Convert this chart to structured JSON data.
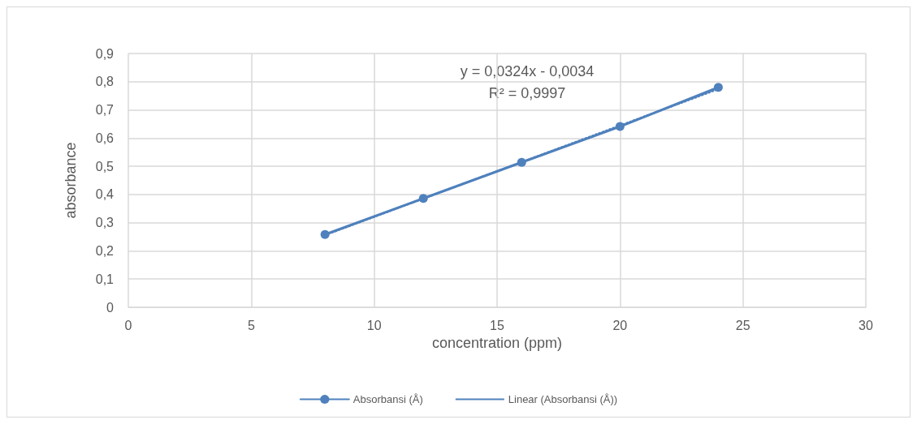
{
  "chart_data": {
    "type": "line",
    "xlabel": "concentration (ppm)",
    "ylabel": "absorbance",
    "annotations": [
      "y = 0,0324x - 0,0034",
      "R² = 0,9997"
    ],
    "series": [
      {
        "name": "Absorbansi (Å)",
        "color": "#4f81bd",
        "x": [
          8,
          12,
          16,
          20,
          24
        ],
        "values": [
          0.258,
          0.386,
          0.514,
          0.641,
          0.78
        ],
        "marker": "circle",
        "line_style": "solid"
      },
      {
        "name": "Linear (Absorbansi (Å))",
        "color": "#4f81bd",
        "x": [
          8,
          24
        ],
        "values": [
          0.256,
          0.774
        ],
        "marker": "none",
        "line_style": "dotted"
      }
    ],
    "xlim": [
      0,
      30
    ],
    "xticks": [
      0,
      5,
      10,
      15,
      20,
      25,
      30
    ],
    "ylim": [
      0,
      0.9
    ],
    "yticks": [
      0,
      {
        "value": 0.1,
        "label": "0,1"
      },
      {
        "value": 0.2,
        "label": "0,2"
      },
      {
        "value": 0.3,
        "label": "0,3"
      },
      {
        "value": 0.4,
        "label": "0,4"
      },
      {
        "value": 0.5,
        "label": "0,5"
      },
      {
        "value": 0.6,
        "label": "0,6"
      },
      {
        "value": 0.7,
        "label": "0,7"
      },
      {
        "value": 0.8,
        "label": "0,8"
      },
      {
        "value": 0.9,
        "label": "0,9"
      }
    ],
    "grid": true,
    "legend": "bottom"
  }
}
